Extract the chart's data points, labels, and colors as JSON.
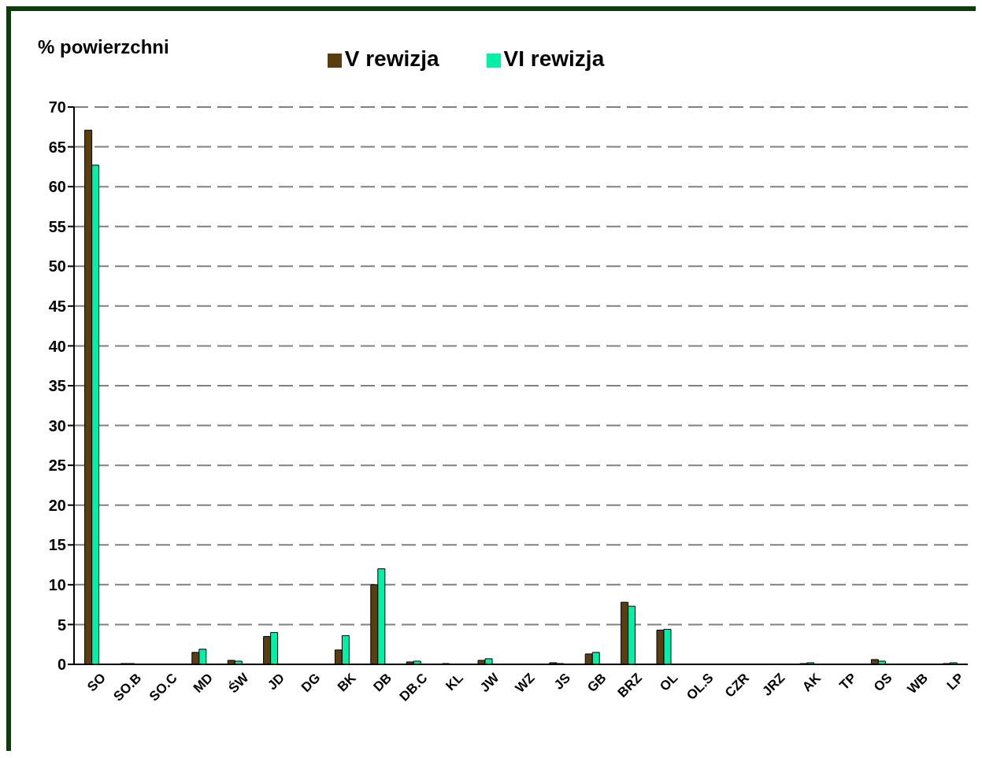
{
  "chart_data": {
    "type": "bar",
    "ylabel": "% powierzchni",
    "categories": [
      "SO",
      "SO.B",
      "SO.C",
      "MD",
      "ŚW",
      "JD",
      "DG",
      "BK",
      "DB",
      "DB.C",
      "KL",
      "JW",
      "WZ",
      "JS",
      "GB",
      "BRZ",
      "OL",
      "OL.S",
      "CZR",
      "JRZ",
      "AK",
      "TP",
      "OS",
      "WB",
      "LP"
    ],
    "series": [
      {
        "name": "V rewizja",
        "color": "#5a3e10",
        "values": [
          67.1,
          0.1,
          0,
          1.5,
          0.5,
          3.5,
          0,
          1.8,
          10.0,
          0.3,
          0.1,
          0.5,
          0,
          0.2,
          1.3,
          7.8,
          4.3,
          0,
          0,
          0,
          0.1,
          0,
          0.6,
          0,
          0.1
        ]
      },
      {
        "name": "VI rewizja",
        "color": "#00f0a8",
        "values": [
          62.7,
          0.1,
          0,
          1.9,
          0.4,
          4.0,
          0,
          3.6,
          12.0,
          0.4,
          0,
          0.7,
          0,
          0.1,
          1.5,
          7.3,
          4.4,
          0,
          0,
          0,
          0.2,
          0,
          0.4,
          0,
          0.2
        ]
      }
    ],
    "ylim": [
      0,
      70
    ],
    "yticks": [
      0,
      5,
      10,
      15,
      20,
      25,
      30,
      35,
      40,
      45,
      50,
      55,
      60,
      65,
      70
    ],
    "grid": "y",
    "legend": "top"
  }
}
